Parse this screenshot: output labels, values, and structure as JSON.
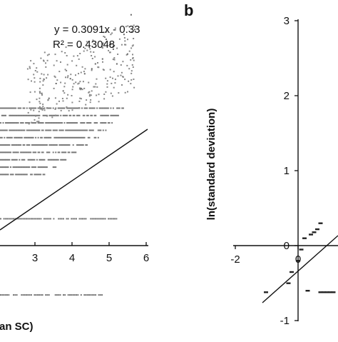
{
  "chart_data": [
    {
      "type": "scatter",
      "panel": "",
      "xlabel": "an SC)",
      "ylabel": "",
      "x_ticks": [
        "3",
        "4",
        "5",
        "6"
      ],
      "xlim": [
        1.85,
        6.0
      ],
      "ylim": [
        -2.9,
        3.2
      ],
      "grid": false,
      "annotations": [
        "y = 0.3091x - 0.33",
        "R² = 0.43048"
      ],
      "trendline": {
        "slope": 0.3091,
        "intercept": -0.33
      },
      "point_color": "#777777",
      "points": {
        "bands_y": [
          -0.35,
          -0.2,
          -0.05,
          0.1,
          0.25,
          0.4,
          0.55,
          0.7,
          0.85,
          1.0
        ],
        "band_x_max": [
          3.1,
          3.4,
          3.7,
          4.0,
          4.3,
          4.6,
          4.8,
          5.0,
          5.2,
          5.3
        ],
        "lower_band_y": [
          -1.25,
          -2.8
        ],
        "lower_band_x_max": [
          5.1,
          4.7
        ],
        "scatter_upper": [
          [
            3.0,
            1.3
          ],
          [
            3.4,
            1.5
          ],
          [
            3.8,
            1.6
          ],
          [
            4.1,
            1.4
          ],
          [
            4.4,
            1.8
          ],
          [
            4.7,
            2.0
          ],
          [
            5.0,
            2.2
          ],
          [
            5.3,
            2.5
          ],
          [
            5.6,
            2.6
          ],
          [
            4.9,
            2.3
          ],
          [
            4.5,
            1.9
          ],
          [
            3.6,
            1.35
          ],
          [
            5.5,
            2.9
          ],
          [
            4.2,
            1.7
          ],
          [
            3.2,
            1.2
          ],
          [
            5.1,
            1.9
          ],
          [
            4.8,
            2.4
          ],
          [
            5.4,
            2.1
          ]
        ]
      },
      "point_counts": [
        520,
        60
      ]
    },
    {
      "type": "scatter",
      "panel": "b",
      "xlabel": "",
      "ylabel": "ln(standard deviation)",
      "x_ticks": [
        "-2",
        "0"
      ],
      "y_ticks": [
        "-1",
        "0",
        "1",
        "2",
        "3"
      ],
      "xlim": [
        -2.6,
        1.4
      ],
      "ylim": [
        -1.0,
        3.1
      ],
      "grid": false,
      "trendline": {
        "slope": 0.9,
        "intercept": 0.0
      },
      "point_color": "#222222",
      "points": [
        [
          -1.0,
          -0.62
        ],
        [
          -0.3,
          -0.5
        ],
        [
          -0.2,
          -0.35
        ],
        [
          0.0,
          -0.2
        ],
        [
          0.1,
          -0.05
        ],
        [
          0.2,
          0.1
        ],
        [
          0.4,
          0.15
        ],
        [
          0.5,
          0.18
        ],
        [
          0.6,
          0.22
        ],
        [
          0.7,
          0.3
        ],
        [
          0.3,
          -0.6
        ],
        [
          0.7,
          -0.62
        ],
        [
          0.8,
          -0.62
        ],
        [
          0.9,
          -0.62
        ],
        [
          1.0,
          -0.62
        ],
        [
          1.1,
          -0.62
        ]
      ]
    }
  ]
}
